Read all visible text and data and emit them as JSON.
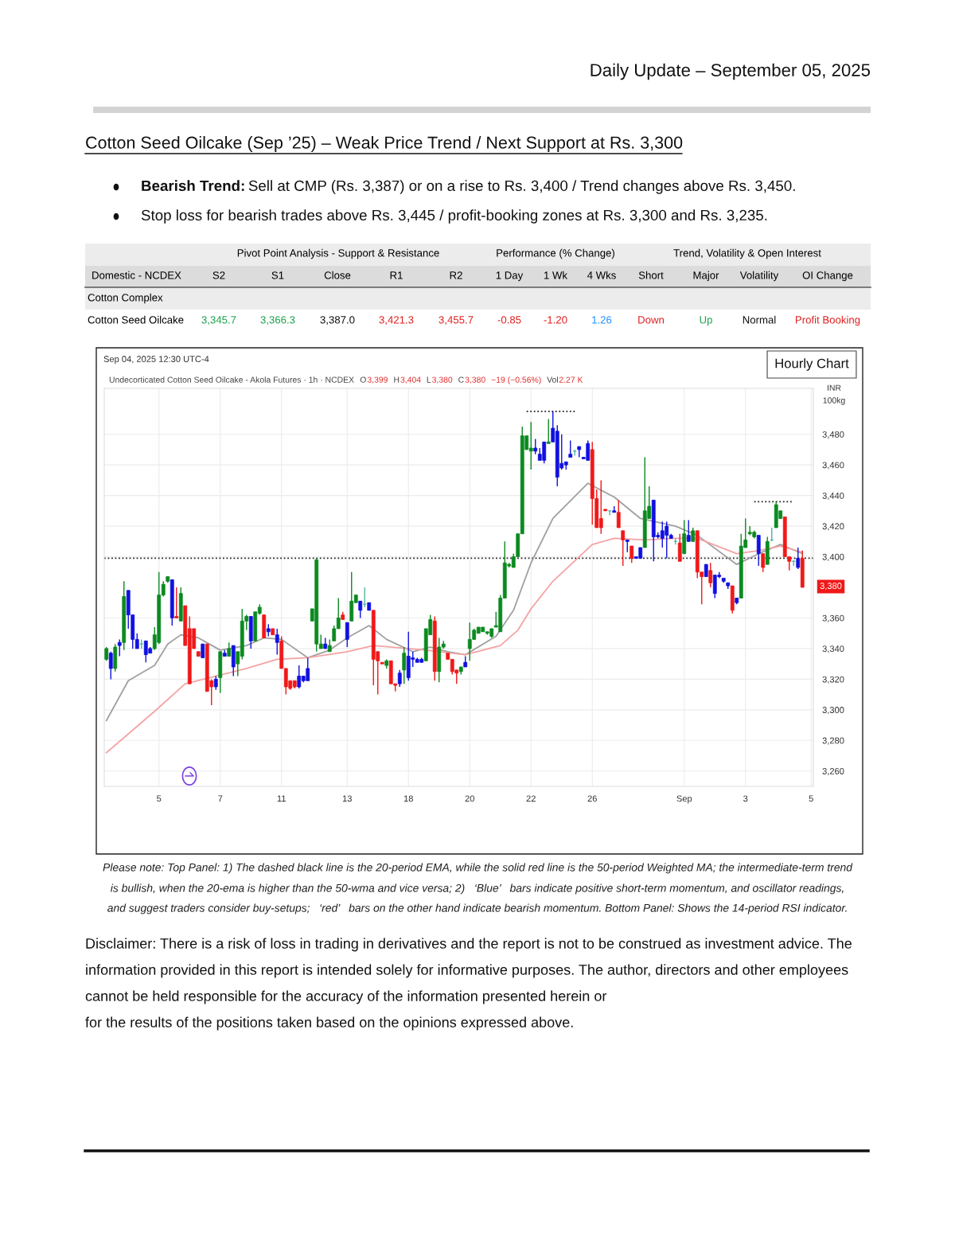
{
  "chart_data": {
    "type": "candlestick",
    "title": "Cotton Seed Oilcake (Sep ’25) – Weak Price Trend / Next Support at Rs. 3,300",
    "subtitle": "Daily Update – September 05, 2025",
    "ylabel": "INR\n100kg",
    "categories": [
      null,
      null,
      null,
      null,
      null,
      null,
      null,
      null,
      null,
      null,
      null,
      null,
      "5",
      null,
      null,
      null,
      null,
      null,
      null,
      null,
      null,
      null,
      null,
      null,
      null,
      null,
      "7",
      null,
      null,
      null,
      null,
      null,
      null,
      null,
      null,
      null,
      null,
      null,
      null,
      null,
      "11",
      null,
      null,
      null,
      null,
      null,
      null,
      null,
      null,
      null,
      null,
      null,
      null,
      null,
      null,
      "13",
      null,
      null,
      null,
      null,
      null,
      null,
      null,
      null,
      null,
      null,
      null,
      null,
      null,
      "18",
      null,
      null,
      null,
      null,
      null,
      null,
      null,
      null,
      null,
      null,
      null,
      null,
      null,
      "20",
      null,
      null,
      null,
      null,
      null,
      null,
      null,
      null,
      null,
      null,
      null,
      null,
      null,
      "22",
      null,
      null,
      null,
      null,
      null,
      null,
      null,
      null,
      null,
      null,
      null,
      null,
      null,
      "26",
      null,
      null,
      null,
      null,
      null,
      null,
      null,
      null,
      null,
      null,
      null,
      null,
      null,
      null,
      null,
      null,
      null,
      null,
      null,
      null,
      "Sep",
      null,
      null,
      null,
      null,
      null,
      null,
      null,
      null,
      null,
      null,
      null,
      null,
      null,
      "3",
      null,
      null,
      null,
      null,
      null,
      null,
      null,
      null,
      null,
      null,
      null,
      null,
      null,
      null,
      "5"
    ],
    "ohlc": [
      [
        3333,
        3341,
        3332,
        3340
      ],
      [
        3337,
        3338,
        3320,
        3327
      ],
      [
        3327,
        3343,
        3325,
        3341
      ],
      [
        3344,
        3346,
        3335,
        3342
      ],
      [
        3344,
        3384,
        3339,
        3374
      ],
      [
        3378,
        3378,
        3353,
        3362
      ],
      [
        3362,
        3362,
        3340,
        3346
      ],
      [
        3346,
        3350,
        3340,
        3340
      ],
      [
        3343,
        3346,
        3340,
        3343
      ],
      [
        3345,
        3345,
        3331,
        3336
      ],
      [
        3340,
        3341,
        3337,
        3337
      ],
      [
        3340,
        3354,
        3339,
        3349
      ],
      [
        3344,
        3390,
        3343,
        3375
      ],
      [
        3375,
        3384,
        3374,
        3382
      ],
      [
        3384,
        3387,
        3383,
        3387
      ],
      [
        3385,
        3385,
        3355,
        3360
      ],
      [
        3361,
        3380,
        3360,
        3360
      ],
      [
        3358,
        3380,
        3358,
        3376
      ],
      [
        3368,
        3368,
        3342,
        3342
      ],
      [
        3353,
        3361,
        3317,
        3317
      ],
      [
        3353,
        3353,
        3340,
        3340
      ],
      [
        3338,
        3338,
        3335,
        3335
      ],
      [
        3343,
        3343,
        3334,
        3334
      ],
      [
        3343,
        3343,
        3312,
        3312
      ],
      [
        3319,
        3320,
        3303,
        3315
      ],
      [
        3320,
        3322,
        3313,
        3315
      ],
      [
        3321,
        3338,
        3311,
        3338
      ],
      [
        3337,
        3339,
        3335,
        3335
      ],
      [
        3335,
        3344,
        3335,
        3340
      ],
      [
        3342,
        3342,
        3322,
        3328
      ],
      [
        3330,
        3338,
        3322,
        3338
      ],
      [
        3335,
        3366,
        3333,
        3358
      ],
      [
        3358,
        3362,
        3352,
        3361
      ],
      [
        3361,
        3361,
        3340,
        3345
      ],
      [
        3345,
        3364,
        3345,
        3364
      ],
      [
        3363,
        3369,
        3362,
        3367
      ],
      [
        3362,
        3362,
        3347,
        3347
      ],
      [
        3353,
        3356,
        3348,
        3351
      ],
      [
        3353,
        3353,
        3349,
        3349
      ],
      [
        3349,
        3353,
        3336,
        3344
      ],
      [
        3345,
        3348,
        3327,
        3327
      ],
      [
        3327,
        3327,
        3310,
        3315
      ],
      [
        3319,
        3319,
        3313,
        3314
      ],
      [
        3319,
        3319,
        3314,
        3315
      ],
      [
        3322,
        3329,
        3314,
        3315
      ],
      [
        3322,
        3322,
        3318,
        3319
      ],
      [
        3327,
        3334,
        3319,
        3319
      ],
      [
        3358,
        3366,
        3358,
        3366
      ],
      [
        3343,
        3399,
        3338,
        3398
      ],
      [
        3340,
        3349,
        3340,
        3343
      ],
      [
        3343,
        3347,
        3340,
        3340
      ],
      [
        3338,
        3346,
        3338,
        3342
      ],
      [
        3345,
        3355,
        3345,
        3353
      ],
      [
        3353,
        3373,
        3353,
        3360
      ],
      [
        3362,
        3364,
        3359,
        3359
      ],
      [
        3357,
        3357,
        3341,
        3346
      ],
      [
        3358,
        3390,
        3358,
        3371
      ],
      [
        3370,
        3375,
        3370,
        3375
      ],
      [
        3371,
        3371,
        3360,
        3365
      ],
      [
        3369,
        3380,
        3367,
        3369
      ],
      [
        3370,
        3370,
        3365,
        3365
      ],
      [
        3365,
        3365,
        3316,
        3333
      ],
      [
        3338,
        3338,
        3310,
        3332
      ],
      [
        3331,
        3331,
        3330,
        3330
      ],
      [
        3329,
        3333,
        3327,
        3332
      ],
      [
        3332,
        3332,
        3317,
        3317
      ],
      [
        3317,
        3317,
        3312,
        3316
      ],
      [
        3324,
        3326,
        3315,
        3317
      ],
      [
        3326,
        3341,
        3317,
        3337
      ],
      [
        3335,
        3351,
        3319,
        3321
      ],
      [
        3334,
        3338,
        3328,
        3333
      ],
      [
        3333,
        3334,
        3331,
        3331
      ],
      [
        3333,
        3334,
        3331,
        3331
      ],
      [
        3332,
        3353,
        3332,
        3353
      ],
      [
        3349,
        3362,
        3349,
        3359
      ],
      [
        3358,
        3361,
        3319,
        3325
      ],
      [
        3325,
        3347,
        3318,
        3341
      ],
      [
        3341,
        3345,
        3340,
        3343
      ],
      [
        3337,
        3337,
        3333,
        3333
      ],
      [
        3333,
        3333,
        3323,
        3325
      ],
      [
        3326,
        3326,
        3317,
        3324
      ],
      [
        3325,
        3328,
        3323,
        3328
      ],
      [
        3331,
        3335,
        3328,
        3328
      ],
      [
        3340,
        3357,
        3332,
        3346
      ],
      [
        3346,
        3353,
        3346,
        3352
      ],
      [
        3350,
        3354,
        3350,
        3354
      ],
      [
        3351,
        3354,
        3351,
        3354
      ],
      [
        3350,
        3351,
        3349,
        3351
      ],
      [
        3348,
        3353,
        3347,
        3353
      ],
      [
        3354,
        3364,
        3354,
        3355
      ],
      [
        3351,
        3375,
        3351,
        3373
      ],
      [
        3373,
        3410,
        3373,
        3396
      ],
      [
        3394,
        3396,
        3393,
        3395
      ],
      [
        3393,
        3402,
        3393,
        3400
      ],
      [
        3400,
        3415,
        3400,
        3415
      ],
      [
        3415,
        3485,
        3415,
        3479
      ],
      [
        3470,
        3479,
        3470,
        3479
      ],
      [
        3469,
        3488,
        3457,
        3471
      ],
      [
        3471,
        3477,
        3467,
        3469
      ],
      [
        3467,
        3471,
        3463,
        3463
      ],
      [
        3475,
        3475,
        3461,
        3463
      ],
      [
        3474,
        3490,
        3474,
        3475
      ],
      [
        3484,
        3495,
        3475,
        3475
      ],
      [
        3482,
        3486,
        3446,
        3452
      ],
      [
        3461,
        3480,
        3457,
        3458
      ],
      [
        3462,
        3462,
        3457,
        3460
      ],
      [
        3467,
        3476,
        3465,
        3465
      ],
      [
        3469,
        3470,
        3466,
        3469
      ],
      [
        3472,
        3472,
        3465,
        3470
      ],
      [
        3465,
        3465,
        3464,
        3464
      ],
      [
        3474,
        3476,
        3463,
        3463
      ],
      [
        3470,
        3475,
        3421,
        3438
      ],
      [
        3438,
        3444,
        3419,
        3419
      ],
      [
        3425,
        3450,
        3415,
        3419
      ],
      [
        3431,
        3431,
        3430,
        3430
      ],
      [
        3430,
        3430,
        3427,
        3430
      ],
      [
        3430,
        3433,
        3429,
        3429
      ],
      [
        3429,
        3437,
        3419,
        3419
      ],
      [
        3417,
        3417,
        3394,
        3411
      ],
      [
        3411,
        3411,
        3403,
        3410
      ],
      [
        3407,
        3407,
        3396,
        3399
      ],
      [
        3400,
        3400,
        3399,
        3399
      ],
      [
        3406,
        3406,
        3399,
        3399
      ],
      [
        3406,
        3465,
        3406,
        3430
      ],
      [
        3425,
        3446,
        3425,
        3433
      ],
      [
        3437,
        3437,
        3397,
        3413
      ],
      [
        3414,
        3416,
        3412,
        3413
      ],
      [
        3417,
        3423,
        3406,
        3412
      ],
      [
        3420,
        3423,
        3399,
        3414
      ],
      [
        3414,
        3415,
        3412,
        3412
      ],
      [
        3410,
        3412,
        3408,
        3410
      ],
      [
        3409,
        3415,
        3397,
        3397
      ],
      [
        3402,
        3424,
        3402,
        3415
      ],
      [
        3414,
        3424,
        3410,
        3410
      ],
      [
        3410,
        3419,
        3410,
        3417
      ],
      [
        3417,
        3417,
        3386,
        3390
      ],
      [
        3390,
        3390,
        3369,
        3387
      ],
      [
        3395,
        3395,
        3387,
        3387
      ],
      [
        3391,
        3396,
        3380,
        3383
      ],
      [
        3388,
        3388,
        3373,
        3376
      ],
      [
        3388,
        3390,
        3386,
        3387
      ],
      [
        3386,
        3386,
        3383,
        3384
      ],
      [
        3383,
        3383,
        3379,
        3381
      ],
      [
        3381,
        3381,
        3363,
        3365
      ],
      [
        3373,
        3373,
        3369,
        3370
      ],
      [
        3373,
        3415,
        3373,
        3407
      ],
      [
        3406,
        3425,
        3406,
        3411
      ],
      [
        3415,
        3420,
        3414,
        3416
      ],
      [
        3413,
        3417,
        3412,
        3416
      ],
      [
        3414,
        3414,
        3394,
        3402
      ],
      [
        3402,
        3402,
        3390,
        3393
      ],
      [
        3395,
        3413,
        3395,
        3410
      ],
      [
        3411,
        3419,
        3410,
        3411
      ],
      [
        3419,
        3436,
        3419,
        3434
      ],
      [
        3425,
        3430,
        3425,
        3430
      ],
      [
        3426,
        3426,
        3400,
        3400
      ],
      [
        3400,
        3400,
        3391,
        3397
      ],
      [
        3397,
        3398,
        3394,
        3397
      ],
      [
        3399,
        3406,
        3392,
        3393
      ],
      [
        3399,
        3404,
        3380,
        3380
      ],
      null,
      null
    ],
    "colors": [
      "#0b8a1f",
      "#1010e0",
      "#0b8a1f",
      "#1010e0",
      "#0b8a1f",
      "#1010e0",
      "#1010e0",
      "#1010e0",
      "#4fb5a5",
      "#1010e0",
      "#1010e0",
      "#0b8a1f",
      "#0b8a1f",
      "#0b8a1f",
      "#0b8a1f",
      "#1010e0",
      "#f01818",
      "#0b8a1f",
      "#f01818",
      "#f01818",
      "#f01818",
      "#f01818",
      "#1010e0",
      "#f01818",
      "#f01818",
      "#1010e0",
      "#0b8a1f",
      "#1010e0",
      "#0b8a1f",
      "#1010e0",
      "#0b8a1f",
      "#0b8a1f",
      "#0b8a1f",
      "#1010e0",
      "#0b8a1f",
      "#0b8a1f",
      "#f01818",
      "#1010e0",
      "#f01818",
      "#1010e0",
      "#f01818",
      "#f01818",
      "#f01818",
      "#f01818",
      "#1010e0",
      "#1010e0",
      "#1010e0",
      "#0b8a1f",
      "#0b8a1f",
      "#0b8a1f",
      "#1010e0",
      "#0b8a1f",
      "#0b8a1f",
      "#0b8a1f",
      "#f01818",
      "#1010e0",
      "#0b8a1f",
      "#0b8a1f",
      "#1010e0",
      "#4fb5a5",
      "#1010e0",
      "#f01818",
      "#f01818",
      "#f01818",
      "#0b8a1f",
      "#f01818",
      "#f01818",
      "#1010e0",
      "#0b8a1f",
      "#1010e0",
      "#1010e0",
      "#1010e0",
      "#1010e0",
      "#0b8a1f",
      "#0b8a1f",
      "#f01818",
      "#0b8a1f",
      "#0b8a1f",
      "#f01818",
      "#f01818",
      "#f01818",
      "#0b8a1f",
      "#1010e0",
      "#0b8a1f",
      "#0b8a1f",
      "#0b8a1f",
      "#0b8a1f",
      "#0b8a1f",
      "#0b8a1f",
      "#0b8a1f",
      "#0b8a1f",
      "#0b8a1f",
      "#0b8a1f",
      "#0b8a1f",
      "#0b8a1f",
      "#0b8a1f",
      "#0b8a1f",
      "#0b8a1f",
      "#1010e0",
      "#1010e0",
      "#1010e0",
      "#0b8a1f",
      "#1010e0",
      "#1010e0",
      "#1010e0",
      "#1010e0",
      "#1010e0",
      "#4fb5a5",
      "#1010e0",
      "#1010e0",
      "#1010e0",
      "#f01818",
      "#f01818",
      "#f01818",
      "#f01818",
      "#4fb5a5",
      "#1010e0",
      "#f01818",
      "#f01818",
      "#1010e0",
      "#f01818",
      "#1010e0",
      "#1010e0",
      "#0b8a1f",
      "#0b8a1f",
      "#1010e0",
      "#1010e0",
      "#1010e0",
      "#1010e0",
      "#1010e0",
      "#4fb5a5",
      "#f01818",
      "#0b8a1f",
      "#1010e0",
      "#0b8a1f",
      "#f01818",
      "#f01818",
      "#1010e0",
      "#f01818",
      "#1010e0",
      "#1010e0",
      "#1010e0",
      "#1010e0",
      "#f01818",
      "#1010e0",
      "#0b8a1f",
      "#0b8a1f",
      "#0b8a1f",
      "#0b8a1f",
      "#1010e0",
      "#f01818",
      "#0b8a1f",
      "#4fb5a5",
      "#0b8a1f",
      "#0b8a1f",
      "#f01818",
      "#f01818",
      "#4fb5a5",
      "#1010e0",
      "#f01818",
      null,
      null
    ],
    "series": [
      {
        "type": "line",
        "color": "#a0a0a0",
        "line_style": "solid",
        "values": [
          3293,
          null,
          null,
          null,
          null,
          3319,
          null,
          null,
          null,
          null,
          null,
          3329,
          null,
          null,
          3343,
          null,
          null,
          3349,
          null,
          null,
          null,
          3347,
          null,
          null,
          null,
          null,
          3339,
          null,
          null,
          null,
          null,
          null,
          3342,
          null,
          null,
          null,
          3347,
          null,
          null,
          null,
          3346,
          null,
          null,
          null,
          null,
          null,
          3334,
          null,
          null,
          null,
          null,
          3339,
          null,
          null,
          null,
          3347,
          null,
          null,
          null,
          null,
          3355,
          null,
          null,
          null,
          3346,
          null,
          null,
          null,
          null,
          null,
          3338,
          null,
          null,
          null,
          3341,
          null,
          null,
          null,
          3338,
          null,
          null,
          null,
          3336,
          null,
          null,
          null,
          null,
          null,
          null,
          3348,
          null,
          null,
          null,
          3365,
          null,
          null,
          null,
          3396,
          null,
          null,
          null,
          null,
          3425,
          null,
          null,
          null,
          null,
          null,
          null,
          null,
          3448,
          null,
          null,
          null,
          null,
          null,
          3439,
          null,
          null,
          null,
          null,
          null,
          3425,
          null,
          null,
          null,
          null,
          null,
          null,
          null,
          3420,
          null,
          null,
          null,
          null,
          3414,
          null,
          null,
          null,
          null,
          null,
          null,
          null,
          null,
          3395,
          null,
          null,
          null,
          null,
          3402,
          null,
          null,
          null,
          null,
          3408,
          null,
          null,
          null,
          null,
          3402,
          null,
          null
        ]
      },
      {
        "type": "line",
        "color": "#f4a3a3",
        "line_style": "solid",
        "values": [
          3272,
          null,
          null,
          null,
          null,
          null,
          null,
          null,
          null,
          null,
          null,
          3299,
          null,
          null,
          null,
          null,
          null,
          null,
          3317,
          null,
          null,
          null,
          null,
          null,
          null,
          null,
          null,
          null,
          null,
          null,
          null,
          null,
          3327,
          null,
          null,
          null,
          null,
          null,
          null,
          3333,
          null,
          null,
          null,
          null,
          null,
          null,
          3334,
          null,
          null,
          null,
          null,
          null,
          null,
          null,
          null,
          3338,
          null,
          null,
          null,
          null,
          null,
          3342,
          null,
          null,
          null,
          null,
          null,
          null,
          null,
          null,
          null,
          null,
          null,
          3339,
          null,
          null,
          null,
          null,
          null,
          null,
          null,
          null,
          3336,
          null,
          null,
          null,
          null,
          null,
          null,
          null,
          3342,
          null,
          null,
          null,
          3352,
          null,
          null,
          3366,
          null,
          null,
          null,
          null,
          3384,
          null,
          null,
          null,
          null,
          null,
          null,
          null,
          null,
          3408,
          null,
          null,
          null,
          null,
          3412,
          null,
          null,
          null,
          null,
          null,
          null,
          3411,
          null,
          null,
          null,
          null,
          null,
          null,
          3412,
          null,
          null,
          null,
          null,
          3412,
          null,
          null,
          null,
          null,
          null,
          null,
          null,
          null,
          3402,
          null,
          null,
          null,
          null,
          3404,
          null,
          null,
          null,
          null,
          3407,
          null,
          null,
          null,
          null,
          3403,
          null,
          null
        ]
      },
      {
        "type": "line",
        "color": "#222222",
        "line_style": "dotted",
        "values": [
          null,
          null,
          null,
          null,
          null,
          null,
          null,
          null,
          null,
          null,
          null,
          null,
          null,
          null,
          null,
          null,
          null,
          null,
          null,
          null,
          null,
          null,
          null,
          null,
          null,
          null,
          null,
          null,
          null,
          null,
          null,
          null,
          null,
          null,
          null,
          null,
          null,
          null,
          null,
          null,
          null,
          null,
          null,
          null,
          null,
          null,
          null,
          null,
          null,
          null,
          null,
          null,
          null,
          null,
          null,
          null,
          null,
          null,
          null,
          null,
          null,
          null,
          null,
          null,
          null,
          null,
          null,
          null,
          null,
          null,
          null,
          null,
          null,
          null,
          null,
          null,
          null,
          null,
          null,
          null,
          null,
          null,
          null,
          null,
          null,
          null,
          null,
          null,
          null,
          null,
          null,
          null,
          null,
          null,
          null,
          null,
          3495,
          null,
          null,
          null,
          null,
          null,
          null,
          null,
          null,
          null,
          null,
          3495,
          null,
          null,
          null,
          null,
          null,
          null,
          null,
          null,
          null,
          null,
          null,
          null,
          null,
          null,
          null,
          null,
          null,
          null,
          null,
          null,
          null,
          null,
          null,
          null,
          null,
          null,
          null,
          null,
          null,
          null,
          null,
          null,
          null,
          null,
          null,
          null,
          null,
          null,
          null,
          null,
          null,
          null,
          null,
          null,
          null,
          null,
          null,
          null,
          null,
          null,
          null,
          null,
          null,
          null
        ]
      },
      {
        "type": "line",
        "color": "#222222",
        "line_style": "dotted",
        "values": [
          null,
          null,
          null,
          null,
          null,
          null,
          null,
          null,
          null,
          null,
          null,
          null,
          null,
          null,
          null,
          null,
          null,
          null,
          null,
          null,
          null,
          null,
          null,
          null,
          null,
          null,
          null,
          null,
          null,
          null,
          null,
          null,
          null,
          null,
          null,
          null,
          null,
          null,
          null,
          null,
          null,
          null,
          null,
          null,
          null,
          null,
          null,
          null,
          null,
          null,
          null,
          null,
          null,
          null,
          null,
          null,
          null,
          null,
          null,
          null,
          null,
          null,
          null,
          null,
          null,
          null,
          null,
          null,
          null,
          null,
          null,
          null,
          null,
          null,
          null,
          null,
          null,
          null,
          null,
          null,
          null,
          null,
          null,
          null,
          null,
          null,
          null,
          null,
          null,
          null,
          null,
          null,
          null,
          null,
          null,
          null,
          null,
          null,
          null,
          null,
          null,
          null,
          null,
          null,
          null,
          null,
          null,
          null,
          null,
          null,
          null,
          null,
          null,
          null,
          null,
          null,
          null,
          null,
          null,
          null,
          null,
          null,
          null,
          null,
          null,
          null,
          null,
          null,
          null,
          null,
          null,
          null,
          null,
          null,
          null,
          null,
          null,
          null,
          null,
          null,
          null,
          null,
          null,
          null,
          null,
          null,
          null,
          null,
          3436,
          null,
          null,
          null,
          null,
          null,
          null,
          null,
          null,
          3436,
          null,
          null,
          null,
          null
        ]
      }
    ],
    "ylim": [
      3250,
      3510
    ],
    "yticks": [
      {
        "value": 3260,
        "label": "3,260"
      },
      {
        "value": 3280,
        "label": "3,280"
      },
      {
        "value": 3300,
        "label": "3,300"
      },
      {
        "value": 3320,
        "label": "3,320"
      },
      {
        "value": 3340,
        "label": "3,340"
      },
      {
        "value": 3360,
        "label": "3,360"
      },
      {
        "value": 3400,
        "label": "3,400"
      },
      {
        "value": 3420,
        "label": "3,420"
      },
      {
        "value": 3440,
        "label": "3,440"
      },
      {
        "value": 3460,
        "label": "3,460"
      },
      {
        "value": 3480,
        "label": "3,480"
      }
    ],
    "ref_lines": [
      {
        "axis": "y",
        "value": 3399,
        "color": "#222222",
        "line_style": "dotted"
      }
    ],
    "grid": true,
    "legend": false,
    "annotations": [
      "Bearish Trend:",
      "Sell at CMP (Rs. 3,387) or on a rise to Rs. 3,400 / Trend changes above Rs. 3,450.",
      "Stop loss for bearish trades above Rs. 3,445 / profit-booking zones at Rs. 3,300 and Rs. 3,235.",
      "Pivot Point Analysis - Support & Resistance",
      "Performance (% Change)",
      "Trend, Volatility & Open Interest",
      "Domestic - NCDEX",
      "S2",
      "S1",
      "Close",
      "R1",
      "R2",
      "1 Day",
      "1 Wk",
      "4 Wks",
      "Short",
      "Major",
      "Volatility",
      "OI Change",
      "Cotton Complex",
      "Cotton Seed Oilcake",
      "3,345.7",
      "3,366.3",
      "3,387.0",
      "3,421.3",
      "3,455.7",
      "-0.85",
      "-1.20",
      "1.26",
      "Down",
      "Up",
      "Normal",
      "Profit Booking",
      "Sep 04, 2025 12:30 UTC-4",
      "Undecorticated Cotton Seed Oilcake - Akola Futures · 1h · NCDEX",
      "O",
      "3,399",
      "H",
      "3,404",
      "L",
      "3,380",
      "C",
      "3,380",
      "−19 (−0.56%)",
      "Vol",
      "2.27 K",
      "Hourly Chart",
      "Please note: Top Panel: 1) The dashed black line is the 20-period EMA, while the solid red line is the 50-period Weighted MA; the intermediate-term trend",
      "is bullish, when the 20-ema is higher than the 50-wma and vice versa; 2)   ‘Blue’   bars indicate positive short-term momentum, and oscillator readings,",
      "and suggest traders consider buy-setups;   ‘red’   bars on the other hand indicate bearish momentum. Bottom Panel: Shows the 14-period RSI indicator.",
      "Disclaimer: There is a risk of loss in trading in derivatives and the report is not to be construed as investment advice. The",
      "information provided in this report is intended solely for informative purposes. The author, directors and other employees",
      "cannot be held responsible for the accuracy of the information presented herein or",
      "for the results of the positions taken based on the opinions expressed above.",
      "3,380"
    ]
  }
}
